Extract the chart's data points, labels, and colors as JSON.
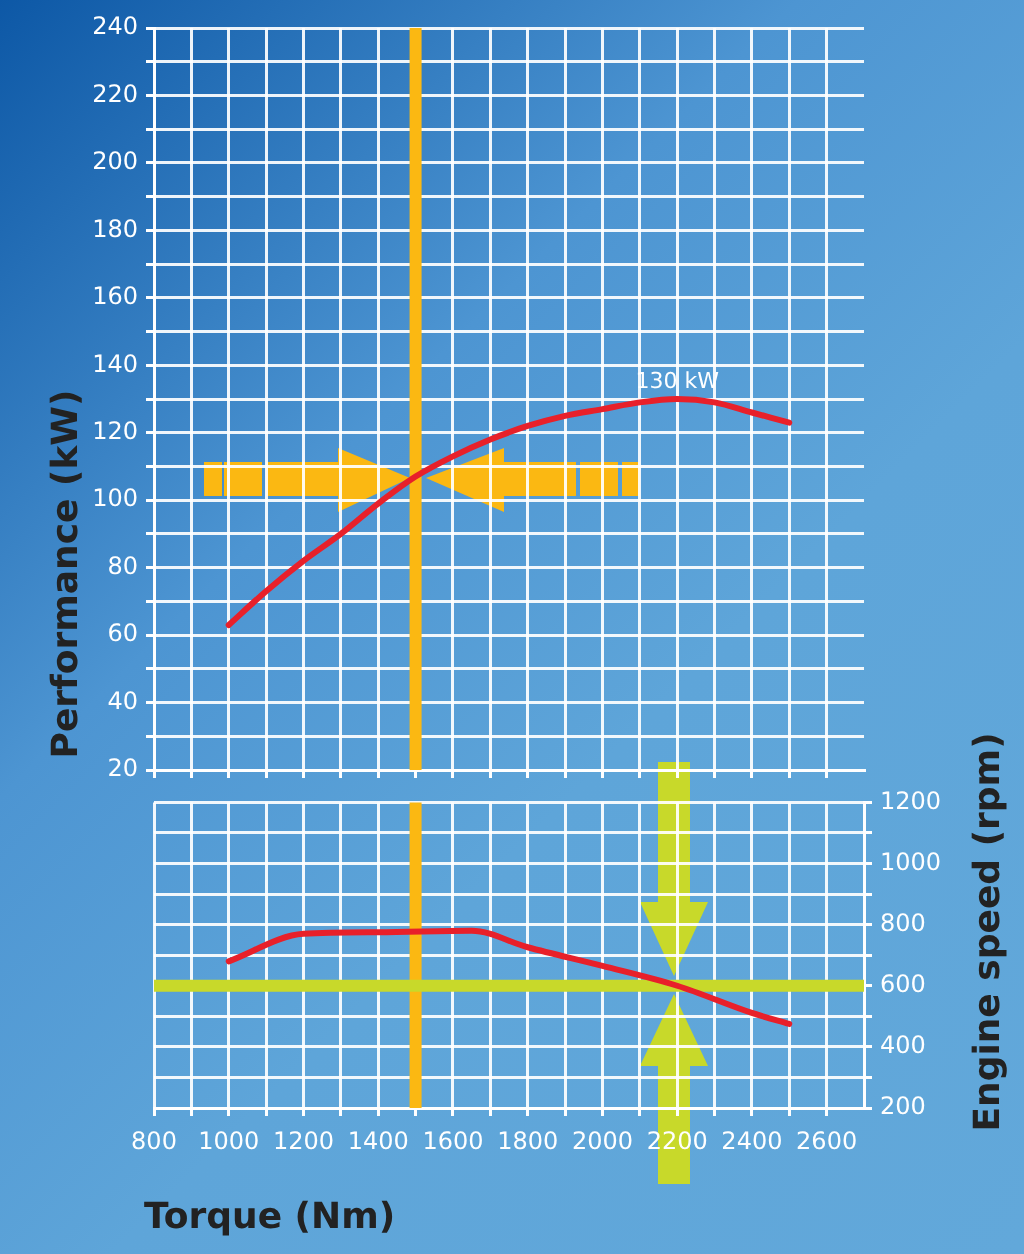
{
  "chart_data": [
    {
      "type": "line",
      "ylabel": "Performance (kW)",
      "x": [
        1000,
        1100,
        1200,
        1300,
        1400,
        1500,
        1600,
        1700,
        1800,
        1900,
        2000,
        2100,
        2200,
        2300,
        2400,
        2500
      ],
      "series": [
        {
          "color": "#e8202a",
          "values": [
            63,
            73,
            82,
            90,
            99,
            107,
            113,
            118,
            122,
            125,
            127,
            129,
            130,
            129,
            126,
            123
          ]
        }
      ],
      "xlim": [
        800,
        2700
      ],
      "xticks": [
        800,
        {
          "value": 900,
          "label": null
        },
        1000,
        {
          "value": 1100,
          "label": null
        },
        1200,
        {
          "value": 1300,
          "label": null
        },
        1400,
        {
          "value": 1500,
          "label": null
        },
        1600,
        {
          "value": 1700,
          "label": null
        },
        1800,
        {
          "value": 1900,
          "label": null
        },
        2000,
        {
          "value": 2100,
          "label": null
        },
        2200,
        {
          "value": 2300,
          "label": null
        },
        2400,
        {
          "value": 2500,
          "label": null
        },
        2600
      ],
      "ylim": [
        20,
        240
      ],
      "yticks": [
        20,
        {
          "value": 30,
          "label": null
        },
        40,
        {
          "value": 50,
          "label": null
        },
        60,
        {
          "value": 70,
          "label": null
        },
        80,
        {
          "value": 90,
          "label": null
        },
        100,
        {
          "value": 110,
          "label": null
        },
        120,
        {
          "value": 130,
          "label": null
        },
        140,
        {
          "value": 150,
          "label": null
        },
        160,
        {
          "value": 170,
          "label": null
        },
        180,
        {
          "value": 190,
          "label": null
        },
        200,
        {
          "value": 210,
          "label": null
        },
        220,
        {
          "value": 230,
          "label": null
        },
        240
      ],
      "grid": true,
      "marker": "none",
      "tick_labels": "y",
      "ref_lines": [
        {
          "axis": "x",
          "value": 1500,
          "color": "#fbb812"
        }
      ],
      "annotations": [
        {
          "text": "130 kW",
          "x": 2200,
          "y": 130
        }
      ]
    },
    {
      "type": "line",
      "xlabel": "Torque (Nm)",
      "y2label": "Engine speed (rpm)",
      "x": [
        1000,
        1200,
        1400,
        1650,
        1800,
        2000,
        2200,
        2400,
        2500
      ],
      "series": [
        {
          "color": "#e8202a",
          "axis": "y2",
          "values": [
            680,
            770,
            775,
            780,
            726,
            665,
            600,
            511,
            475
          ]
        }
      ],
      "xlim": [
        800,
        2700
      ],
      "xticks": [
        800,
        {
          "value": 900,
          "label": null
        },
        1000,
        {
          "value": 1100,
          "label": null
        },
        1200,
        {
          "value": 1300,
          "label": null
        },
        1400,
        {
          "value": 1500,
          "label": null
        },
        1600,
        {
          "value": 1700,
          "label": null
        },
        1800,
        {
          "value": 1900,
          "label": null
        },
        2000,
        {
          "value": 2100,
          "label": null
        },
        2200,
        {
          "value": 2300,
          "label": null
        },
        2400,
        {
          "value": 2500,
          "label": null
        },
        2600
      ],
      "y2lim": [
        200,
        1200
      ],
      "y2ticks": [
        200,
        {
          "value": 300,
          "label": null
        },
        400,
        {
          "value": 500,
          "label": null
        },
        600,
        {
          "value": 700,
          "label": null
        },
        800,
        {
          "value": 900,
          "label": null
        },
        1000,
        {
          "value": 1100,
          "label": null
        },
        1200
      ],
      "grid": true,
      "marker": "none",
      "ref_lines": [
        {
          "axis": "x",
          "value": 1500,
          "color": "#fbb812"
        },
        {
          "axis": "y2",
          "value": 600,
          "color": "#c8d92a"
        }
      ]
    }
  ]
}
